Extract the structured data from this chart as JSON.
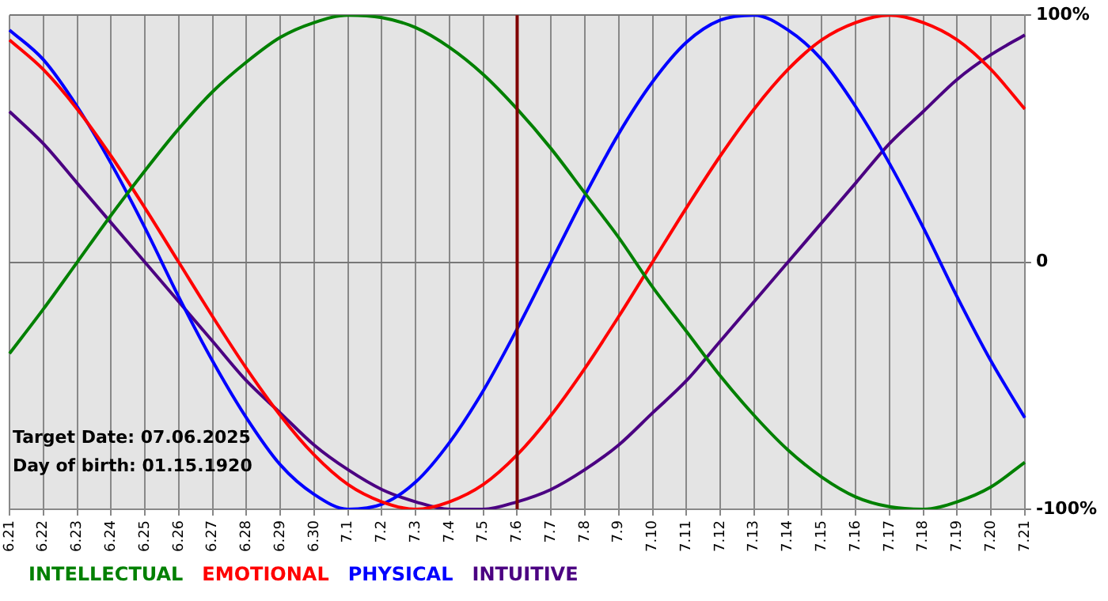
{
  "chart_data": {
    "type": "line",
    "categories": [
      "6.21",
      "6.22",
      "6.23",
      "6.24",
      "6.25",
      "6.26",
      "6.27",
      "6.28",
      "6.29",
      "6.30",
      "7.1",
      "7.2",
      "7.3",
      "7.4",
      "7.5",
      "7.6",
      "7.7",
      "7.8",
      "7.9",
      "7.10",
      "7.11",
      "7.12",
      "7.13",
      "7.14",
      "7.15",
      "7.16",
      "7.17",
      "7.18",
      "7.19",
      "7.20",
      "7.21"
    ],
    "series": [
      {
        "name": "INTELLECTUAL",
        "color": "#008000",
        "values": [
          -37,
          -19,
          0,
          19,
          37,
          54,
          69,
          81,
          91,
          97,
          100,
          99,
          95,
          87,
          76,
          62,
          46,
          28,
          10,
          -10,
          -28,
          -46,
          -62,
          -76,
          -87,
          -95,
          -99,
          -100,
          -97,
          -91,
          -81
        ]
      },
      {
        "name": "EMOTIONAL",
        "color": "#ff0000",
        "values": [
          90,
          78,
          62,
          43,
          22,
          0,
          -22,
          -43,
          -62,
          -78,
          -90,
          -97,
          -100,
          -97,
          -90,
          -78,
          -62,
          -43,
          -22,
          0,
          22,
          43,
          62,
          78,
          90,
          97,
          100,
          97,
          90,
          78,
          62
        ]
      },
      {
        "name": "PHYSICAL",
        "color": "#0000ff",
        "values": [
          94,
          82,
          63,
          40,
          14,
          -14,
          -40,
          -63,
          -82,
          -94,
          -100,
          -98,
          -89,
          -73,
          -52,
          -27,
          0,
          27,
          52,
          73,
          89,
          98,
          100,
          94,
          82,
          63,
          40,
          14,
          -14,
          -40,
          -63
        ]
      },
      {
        "name": "INTUITIVE",
        "color": "#4b0082",
        "values": [
          61,
          48,
          32,
          16,
          0,
          -16,
          -32,
          -48,
          -61,
          -74,
          -84,
          -92,
          -97,
          -100,
          -100,
          -97,
          -92,
          -84,
          -74,
          -61,
          -48,
          -32,
          -16,
          0,
          16,
          32,
          48,
          61,
          74,
          84,
          92
        ]
      }
    ],
    "ylim": [
      -100,
      100
    ],
    "yticks": [
      {
        "value": -100,
        "label": "-100%"
      },
      0,
      {
        "value": 100,
        "label": "100%"
      }
    ],
    "grid": true,
    "legend": "bottom left",
    "marker": "none",
    "ref_lines": [
      {
        "axis": "x",
        "value": "7.6",
        "color": "#800000"
      }
    ],
    "annotations": [
      "Target Date: 07.06.2025",
      "Day of birth: 01.15.1920"
    ]
  }
}
